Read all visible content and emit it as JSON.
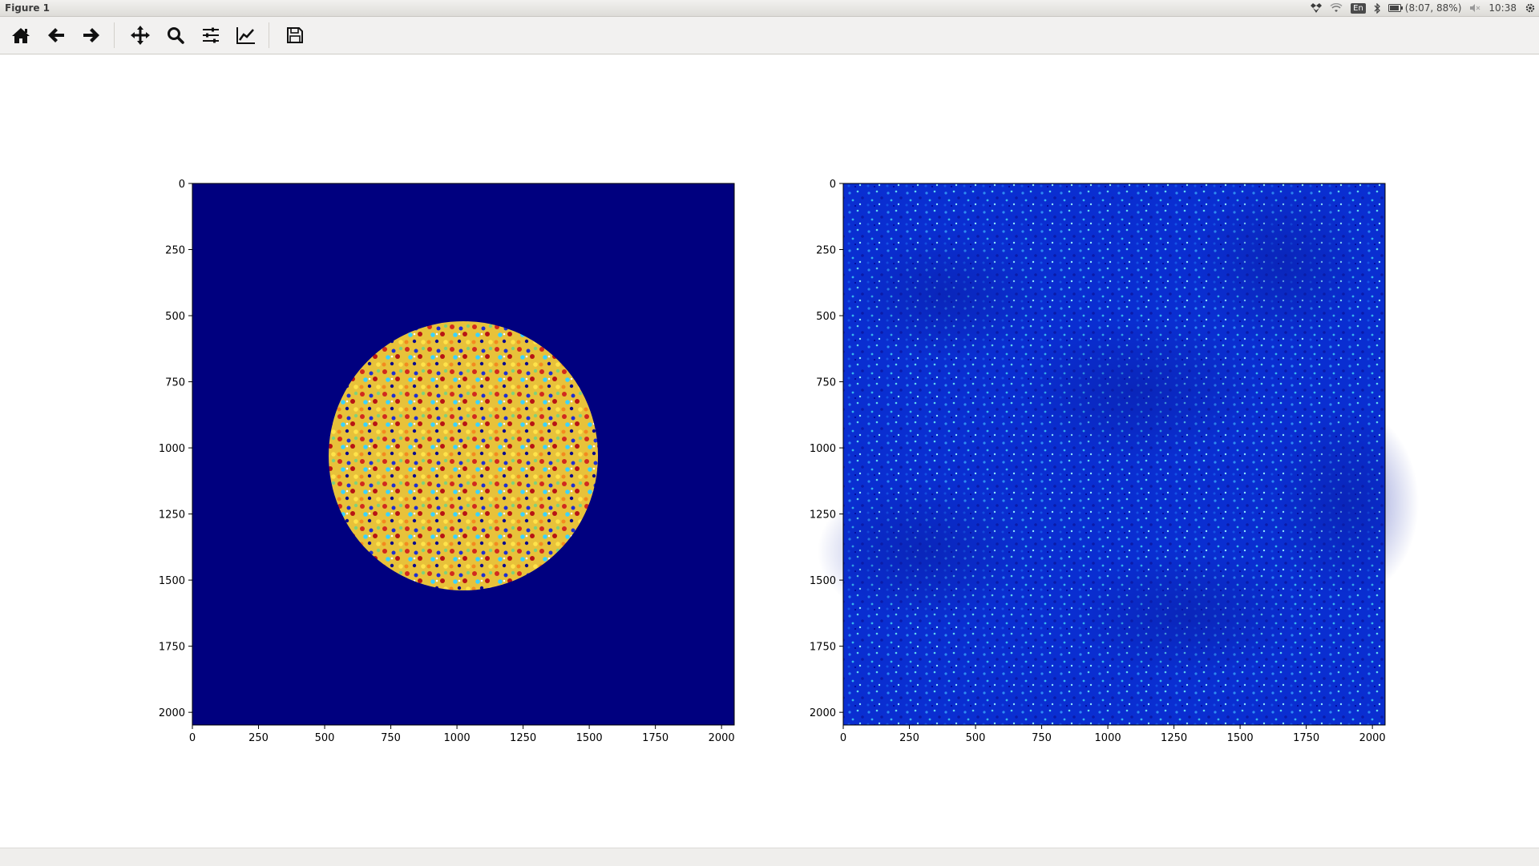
{
  "window": {
    "title": "Figure 1"
  },
  "tray": {
    "lang": "En",
    "battery": "(8:07, 88%)",
    "clock": "10:38",
    "icons": [
      "dropbox-icon",
      "wifi-icon",
      "keyboard-lang-icon",
      "bluetooth-icon",
      "battery-icon",
      "volume-muted-icon",
      "settings-gear-icon"
    ]
  },
  "toolbar": {
    "buttons": [
      {
        "name": "home",
        "icon": "home-icon"
      },
      {
        "name": "back",
        "icon": "arrow-left-icon"
      },
      {
        "name": "forward",
        "icon": "arrow-right-icon"
      },
      {
        "name": "pan",
        "icon": "move-icon"
      },
      {
        "name": "zoom",
        "icon": "magnifier-icon"
      },
      {
        "name": "subplots",
        "icon": "sliders-icon"
      },
      {
        "name": "edit-axes",
        "icon": "line-chart-icon"
      },
      {
        "name": "save",
        "icon": "floppy-disk-icon"
      }
    ]
  },
  "chart_data": [
    {
      "type": "heatmap",
      "title": "",
      "xlabel": "",
      "ylabel": "",
      "colormap": "jet",
      "xlim": [
        0,
        2048
      ],
      "ylim": [
        2048,
        0
      ],
      "x_ticks": [
        "0",
        "250",
        "500",
        "750",
        "1000",
        "1250",
        "1500",
        "1750",
        "2000"
      ],
      "y_ticks": [
        "0",
        "250",
        "500",
        "750",
        "1000",
        "1250",
        "1500",
        "1750",
        "2000"
      ],
      "background_value_color": "#00007f",
      "content": "circular random speckle pattern centered near (1024,1024) with radius about 510 on dark-blue background"
    },
    {
      "type": "heatmap",
      "title": "",
      "xlabel": "",
      "ylabel": "",
      "colormap": "jet",
      "xlim": [
        0,
        2048
      ],
      "ylim": [
        2048,
        0
      ],
      "x_ticks": [
        "0",
        "250",
        "500",
        "750",
        "1000",
        "1250",
        "1500",
        "1750",
        "2000"
      ],
      "y_ticks": [
        "0",
        "250",
        "500",
        "750",
        "1000",
        "1250",
        "1500",
        "1750",
        "2000"
      ],
      "content": "full-frame speckle texture, predominantly blue with cyan/light-blue highlights"
    }
  ]
}
